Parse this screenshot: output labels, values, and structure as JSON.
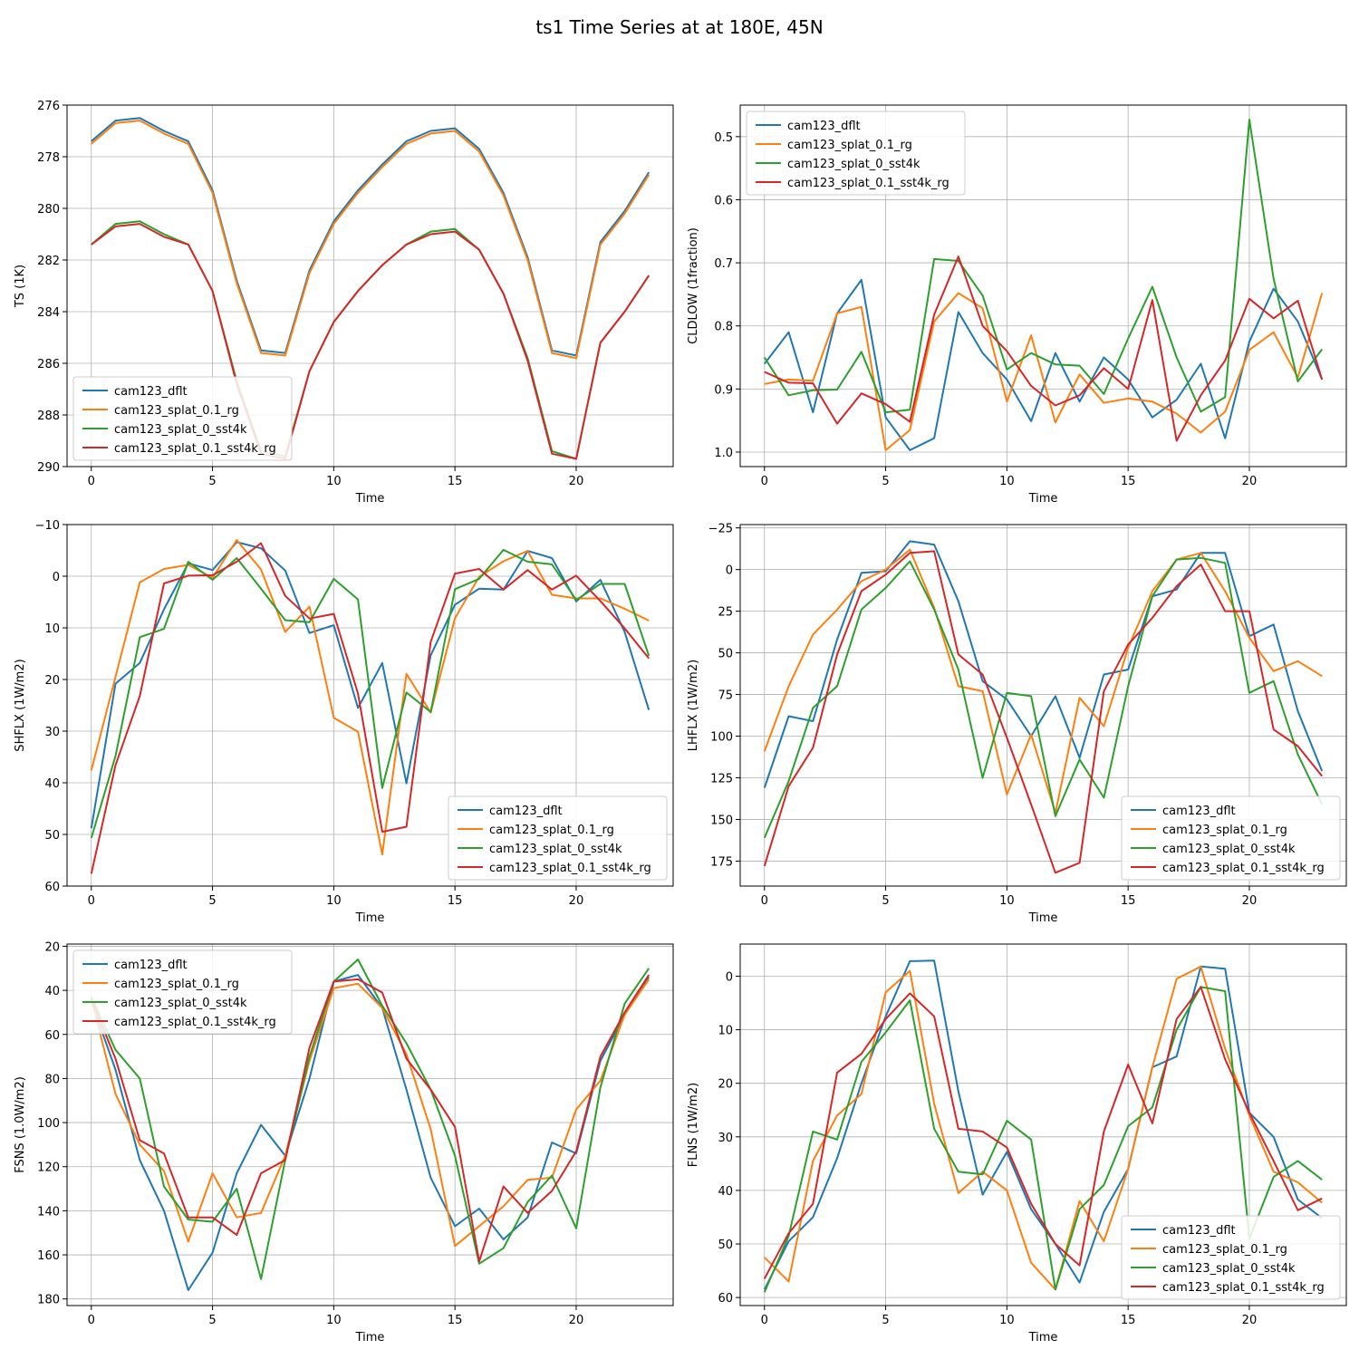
{
  "figure": {
    "title": "ts1 Time Series at at 180E, 45N",
    "series_names": [
      "cam123_dflt",
      "cam123_splat_0.1_rg",
      "cam123_splat_0_sst4k",
      "cam123_splat_0.1_sst4k_rg"
    ],
    "colors": [
      "#1f77b4",
      "#ff7f0e",
      "#2ca02c",
      "#d62728"
    ]
  },
  "chart_data": [
    {
      "type": "line",
      "xlabel": "Time",
      "ylabel": "TS (1K)",
      "xlim": [
        -1,
        24
      ],
      "xticks": [
        0,
        5,
        10,
        15,
        20
      ],
      "ylim": [
        276,
        290
      ],
      "yticks": [
        276,
        278,
        280,
        282,
        284,
        286,
        288,
        290
      ],
      "yticklabels": [
        "276",
        "278",
        "280",
        "282",
        "284",
        "286",
        "288",
        "290"
      ],
      "y_inverted": true,
      "grid": true,
      "legend": "lower-left",
      "x": [
        0,
        1,
        2,
        3,
        4,
        5,
        6,
        7,
        8,
        9,
        10,
        11,
        12,
        13,
        14,
        15,
        16,
        17,
        18,
        19,
        20,
        21,
        22,
        23
      ],
      "series": [
        {
          "name": "cam123_dflt",
          "values": [
            277.4,
            276.6,
            276.5,
            277.0,
            277.4,
            279.3,
            282.8,
            285.5,
            285.6,
            282.4,
            280.5,
            279.3,
            278.3,
            277.4,
            277.0,
            276.9,
            277.7,
            279.4,
            281.9,
            285.5,
            285.7,
            281.3,
            280.1,
            278.6
          ]
        },
        {
          "name": "cam123_splat_0.1_rg",
          "values": [
            277.5,
            276.7,
            276.6,
            277.1,
            277.5,
            279.4,
            282.9,
            285.6,
            285.7,
            282.5,
            280.6,
            279.4,
            278.4,
            277.5,
            277.1,
            277.0,
            277.8,
            279.5,
            282.0,
            285.6,
            285.8,
            281.4,
            280.2,
            278.7
          ]
        },
        {
          "name": "cam123_splat_0_sst4k",
          "values": [
            281.4,
            280.6,
            280.5,
            281.0,
            281.4,
            283.2,
            286.7,
            289.4,
            289.6,
            286.3,
            284.4,
            283.2,
            282.2,
            281.4,
            280.9,
            280.8,
            281.6,
            283.3,
            285.8,
            289.4,
            289.7,
            285.2,
            284.0,
            282.6
          ]
        },
        {
          "name": "cam123_splat_0.1_sst4k_rg",
          "values": [
            281.4,
            280.7,
            280.6,
            281.1,
            281.4,
            283.2,
            286.8,
            289.5,
            289.7,
            286.3,
            284.4,
            283.2,
            282.2,
            281.4,
            281.0,
            280.9,
            281.6,
            283.3,
            285.9,
            289.5,
            289.7,
            285.2,
            284.0,
            282.6
          ]
        }
      ]
    },
    {
      "type": "line",
      "xlabel": "Time",
      "ylabel": "CLDLOW (1fraction)",
      "xlim": [
        -1,
        24
      ],
      "xticks": [
        0,
        5,
        10,
        15,
        20
      ],
      "ylim": [
        0.45,
        1.023
      ],
      "yticks": [
        0.5,
        0.6,
        0.7,
        0.8,
        0.9,
        1.0
      ],
      "yticklabels": [
        "0.5",
        "0.6",
        "0.7",
        "0.8",
        "0.9",
        "1.0"
      ],
      "y_inverted": true,
      "grid": true,
      "legend": "upper-left",
      "x": [
        0,
        1,
        2,
        3,
        4,
        5,
        6,
        7,
        8,
        9,
        10,
        11,
        12,
        13,
        14,
        15,
        16,
        17,
        18,
        19,
        20,
        21,
        22,
        23
      ],
      "series": [
        {
          "name": "cam123_dflt",
          "values": [
            0.86,
            0.81,
            0.937,
            0.78,
            0.727,
            0.945,
            0.997,
            0.978,
            0.778,
            0.843,
            0.885,
            0.951,
            0.843,
            0.92,
            0.85,
            0.885,
            0.945,
            0.917,
            0.86,
            0.978,
            0.825,
            0.741,
            0.793,
            0.885
          ]
        },
        {
          "name": "cam123_splat_0.1_rg",
          "values": [
            0.892,
            0.885,
            0.887,
            0.78,
            0.77,
            0.997,
            0.965,
            0.793,
            0.748,
            0.772,
            0.92,
            0.815,
            0.953,
            0.877,
            0.922,
            0.915,
            0.92,
            0.939,
            0.969,
            0.936,
            0.838,
            0.81,
            0.882,
            0.748
          ]
        },
        {
          "name": "cam123_splat_0_sst4k",
          "values": [
            0.85,
            0.91,
            0.902,
            0.901,
            0.841,
            0.937,
            0.933,
            0.694,
            0.697,
            0.752,
            0.869,
            0.843,
            0.861,
            0.863,
            0.908,
            0.82,
            0.738,
            0.85,
            0.936,
            0.913,
            0.473,
            0.725,
            0.888,
            0.837
          ]
        },
        {
          "name": "cam123_splat_0.1_sst4k_rg",
          "values": [
            0.873,
            0.89,
            0.891,
            0.955,
            0.907,
            0.924,
            0.952,
            0.782,
            0.69,
            0.8,
            0.84,
            0.895,
            0.926,
            0.91,
            0.867,
            0.9,
            0.759,
            0.982,
            0.91,
            0.855,
            0.757,
            0.788,
            0.76,
            0.885
          ]
        }
      ]
    },
    {
      "type": "line",
      "xlabel": "Time",
      "ylabel": "SHFLX (1W/m2)",
      "xlim": [
        -1,
        24
      ],
      "xticks": [
        0,
        5,
        10,
        15,
        20
      ],
      "ylim": [
        -10,
        60
      ],
      "yticks": [
        -10,
        0,
        10,
        20,
        30,
        40,
        50,
        60
      ],
      "yticklabels": [
        "−10",
        "0",
        "10",
        "20",
        "30",
        "40",
        "50",
        "60"
      ],
      "y_inverted": true,
      "grid": true,
      "legend": "lower-right",
      "x": [
        0,
        1,
        2,
        3,
        4,
        5,
        6,
        7,
        8,
        9,
        10,
        11,
        12,
        13,
        14,
        15,
        16,
        17,
        18,
        19,
        20,
        21,
        22,
        23
      ],
      "series": [
        {
          "name": "cam123_dflt",
          "values": [
            48.8,
            20.8,
            16.8,
            6.4,
            -2.5,
            -1.2,
            -6.6,
            -5.4,
            -1.1,
            11.0,
            9.5,
            25.5,
            16.8,
            40.1,
            15.3,
            5.5,
            2.4,
            2.6,
            -4.9,
            -3.5,
            4.9,
            0.7,
            10.8,
            25.9
          ]
        },
        {
          "name": "cam123_splat_0.1_rg",
          "values": [
            37.6,
            19.5,
            1.2,
            -1.4,
            -2.2,
            0.3,
            -7.0,
            -1.3,
            10.8,
            5.9,
            27.4,
            30.1,
            53.9,
            18.9,
            26.4,
            8.1,
            0.1,
            -2.9,
            -4.9,
            3.6,
            4.3,
            4.3,
            6.3,
            8.6
          ]
        },
        {
          "name": "cam123_splat_0_sst4k",
          "values": [
            50.7,
            34.8,
            11.8,
            10.2,
            -2.8,
            0.7,
            -3.5,
            2.4,
            8.5,
            8.9,
            0.5,
            4.5,
            41.0,
            22.5,
            26.3,
            2.5,
            0.5,
            -5.1,
            -2.8,
            -2.3,
            4.6,
            1.5,
            1.5,
            15.4
          ]
        },
        {
          "name": "cam123_splat_0.1_sst4k_rg",
          "values": [
            57.6,
            36.6,
            23.2,
            1.4,
            -0.1,
            -0.2,
            -2.8,
            -6.4,
            3.8,
            8.2,
            7.3,
            22.7,
            49.5,
            48.5,
            12.7,
            -0.5,
            -1.4,
            2.6,
            -1.2,
            2.6,
            -0.1,
            4.8,
            10.1,
            15.9
          ]
        }
      ]
    },
    {
      "type": "line",
      "xlabel": "Time",
      "ylabel": "LHFLX (1W/m2)",
      "xlim": [
        -1,
        24
      ],
      "xticks": [
        0,
        5,
        10,
        15,
        20
      ],
      "ylim": [
        -27,
        190
      ],
      "yticks": [
        -25,
        0,
        25,
        50,
        75,
        100,
        125,
        150,
        175
      ],
      "yticklabels": [
        "−25",
        "0",
        "25",
        "50",
        "75",
        "100",
        "125",
        "150",
        "175"
      ],
      "y_inverted": true,
      "grid": true,
      "legend": "lower-right",
      "x": [
        0,
        1,
        2,
        3,
        4,
        5,
        6,
        7,
        8,
        9,
        10,
        11,
        12,
        13,
        14,
        15,
        16,
        17,
        18,
        19,
        20,
        21,
        22,
        23
      ],
      "series": [
        {
          "name": "cam123_dflt",
          "values": [
            131,
            88,
            91,
            42,
            2,
            1,
            -17,
            -15,
            19,
            67,
            78,
            100,
            76,
            113,
            63,
            60,
            16,
            12,
            -10,
            -10,
            40,
            33,
            85,
            121
          ]
        },
        {
          "name": "cam123_splat_0.1_rg",
          "values": [
            109,
            70,
            39,
            24,
            7,
            0,
            -12,
            23,
            70,
            73,
            135,
            99,
            146,
            77,
            94,
            47,
            13,
            -6,
            -10,
            13,
            41,
            61,
            55,
            64
          ]
        },
        {
          "name": "cam123_splat_0_sst4k",
          "values": [
            161,
            127,
            83,
            70,
            24,
            11,
            -5,
            24,
            60,
            125,
            74,
            76,
            148,
            114,
            137,
            70,
            16,
            -6,
            -7,
            -4,
            74,
            67,
            111,
            141
          ]
        },
        {
          "name": "cam123_splat_0.1_sst4k_rg",
          "values": [
            178,
            130,
            107,
            51,
            13,
            3,
            -10,
            -11,
            51,
            63,
            101,
            141,
            182,
            176,
            73,
            45,
            29,
            10,
            -3,
            25,
            25,
            96,
            106,
            124
          ]
        }
      ]
    },
    {
      "type": "line",
      "xlabel": "Time",
      "ylabel": "FSNS (1.0W/m2)",
      "xlim": [
        -1,
        24
      ],
      "xticks": [
        0,
        5,
        10,
        15,
        20
      ],
      "ylim": [
        19,
        183
      ],
      "yticks": [
        20,
        40,
        60,
        80,
        100,
        120,
        140,
        160,
        180
      ],
      "yticklabels": [
        "20",
        "40",
        "60",
        "80",
        "100",
        "120",
        "140",
        "160",
        "180"
      ],
      "y_inverted": true,
      "grid": true,
      "legend": "upper-left",
      "x": [
        0,
        1,
        2,
        3,
        4,
        5,
        6,
        7,
        8,
        9,
        10,
        11,
        12,
        13,
        14,
        15,
        16,
        17,
        18,
        19,
        20,
        21,
        22,
        23
      ],
      "series": [
        {
          "name": "cam123_dflt",
          "values": [
            45,
            76,
            117,
            140,
            176,
            159,
            123,
            101,
            115,
            80,
            36,
            33,
            48,
            85,
            125,
            147,
            139,
            153,
            143,
            109,
            114,
            72,
            51,
            34
          ]
        },
        {
          "name": "cam123_splat_0.1_rg",
          "values": [
            44,
            87,
            110,
            122,
            154,
            123,
            143,
            141,
            115,
            72,
            39,
            37,
            48,
            69,
            103,
            156,
            147,
            138,
            126,
            125,
            94,
            81,
            51,
            35
          ]
        },
        {
          "name": "cam123_splat_0_sst4k",
          "values": [
            43,
            67,
            80,
            129,
            144,
            145,
            130,
            171,
            117,
            70,
            36,
            26,
            47,
            64,
            85,
            115,
            164,
            157,
            136,
            124,
            148,
            84,
            46,
            30
          ]
        },
        {
          "name": "cam123_splat_0.1_sst4k_rg",
          "values": [
            44,
            71,
            108,
            114,
            143,
            143,
            151,
            123,
            117,
            66,
            36,
            35,
            41,
            71,
            85,
            102,
            163,
            129,
            141,
            131,
            113,
            70,
            50,
            33
          ]
        }
      ]
    },
    {
      "type": "line",
      "xlabel": "Time",
      "ylabel": "FLNS (1W/m2)",
      "xlim": [
        -1,
        24
      ],
      "xticks": [
        0,
        5,
        10,
        15,
        20
      ],
      "ylim": [
        -6,
        61.5
      ],
      "yticks": [
        0,
        10,
        20,
        30,
        40,
        50,
        60
      ],
      "yticklabels": [
        "0",
        "10",
        "20",
        "30",
        "40",
        "50",
        "60"
      ],
      "y_inverted": true,
      "grid": true,
      "legend": "lower-right",
      "x": [
        0,
        1,
        2,
        3,
        4,
        5,
        6,
        7,
        8,
        9,
        10,
        11,
        12,
        13,
        14,
        15,
        16,
        17,
        18,
        19,
        20,
        21,
        22,
        23
      ],
      "series": [
        {
          "name": "cam123_dflt",
          "values": [
            58.5,
            49.5,
            45.0,
            34.0,
            20.0,
            7.5,
            -2.8,
            -2.9,
            21.5,
            40.8,
            32.8,
            43.5,
            50.0,
            57.2,
            44.0,
            36.0,
            17.0,
            15.0,
            -1.8,
            -1.4,
            25.5,
            30.0,
            41.7,
            45.2
          ]
        },
        {
          "name": "cam123_splat_0.1_rg",
          "values": [
            52.5,
            57.0,
            34.5,
            26.0,
            22.0,
            3.0,
            -1.0,
            23.8,
            40.5,
            36.5,
            40.0,
            53.5,
            58.5,
            42.0,
            49.5,
            36.0,
            17.0,
            0.5,
            -1.8,
            13.5,
            26.0,
            36.5,
            38.5,
            42.3
          ]
        },
        {
          "name": "cam123_splat_0_sst4k",
          "values": [
            59.0,
            48.5,
            29.0,
            30.5,
            16.0,
            10.5,
            4.5,
            28.5,
            36.5,
            37.0,
            27.0,
            30.5,
            58.5,
            43.5,
            39.0,
            28.0,
            24.5,
            10.0,
            2.0,
            2.8,
            49.0,
            37.5,
            34.5,
            38.0
          ]
        },
        {
          "name": "cam123_splat_0.1_sst4k_rg",
          "values": [
            56.5,
            48.0,
            42.5,
            18.0,
            14.5,
            8.0,
            3.2,
            7.5,
            28.5,
            29.0,
            32.0,
            42.5,
            50.0,
            54.0,
            29.0,
            16.5,
            27.5,
            8.0,
            2.0,
            15.5,
            25.5,
            34.5,
            43.7,
            41.5
          ]
        }
      ]
    }
  ]
}
